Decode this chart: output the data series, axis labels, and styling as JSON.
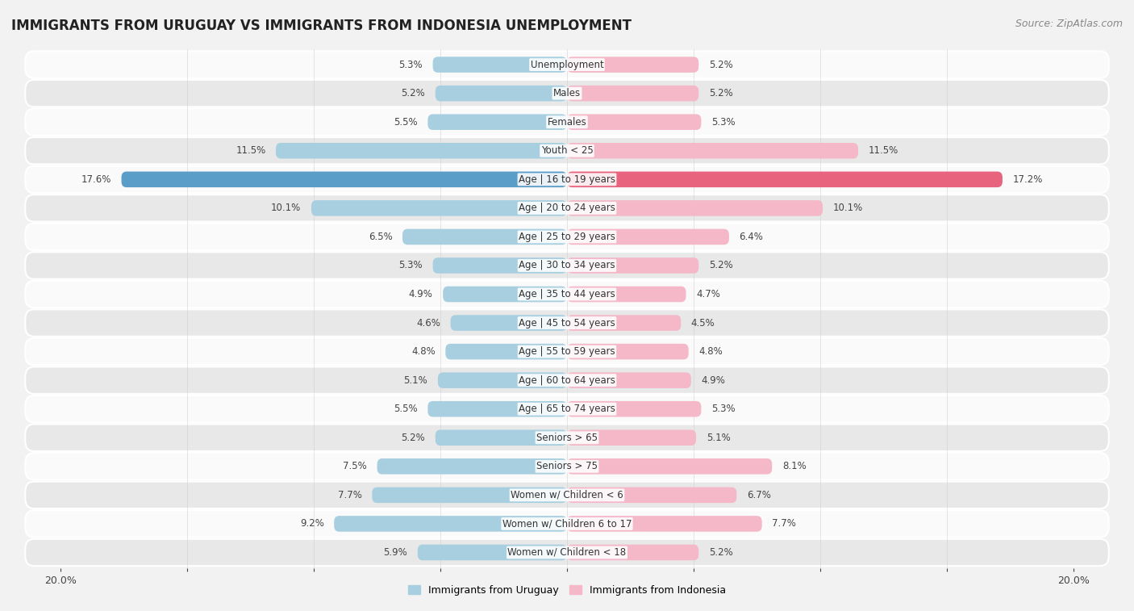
{
  "title": "IMMIGRANTS FROM URUGUAY VS IMMIGRANTS FROM INDONESIA UNEMPLOYMENT",
  "source": "Source: ZipAtlas.com",
  "categories": [
    "Unemployment",
    "Males",
    "Females",
    "Youth < 25",
    "Age | 16 to 19 years",
    "Age | 20 to 24 years",
    "Age | 25 to 29 years",
    "Age | 30 to 34 years",
    "Age | 35 to 44 years",
    "Age | 45 to 54 years",
    "Age | 55 to 59 years",
    "Age | 60 to 64 years",
    "Age | 65 to 74 years",
    "Seniors > 65",
    "Seniors > 75",
    "Women w/ Children < 6",
    "Women w/ Children 6 to 17",
    "Women w/ Children < 18"
  ],
  "uruguay_values": [
    5.3,
    5.2,
    5.5,
    11.5,
    17.6,
    10.1,
    6.5,
    5.3,
    4.9,
    4.6,
    4.8,
    5.1,
    5.5,
    5.2,
    7.5,
    7.7,
    9.2,
    5.9
  ],
  "indonesia_values": [
    5.2,
    5.2,
    5.3,
    11.5,
    17.2,
    10.1,
    6.4,
    5.2,
    4.7,
    4.5,
    4.8,
    4.9,
    5.3,
    5.1,
    8.1,
    6.7,
    7.7,
    5.2
  ],
  "uruguay_color": "#a8cfe0",
  "indonesia_color": "#f4b8c8",
  "uruguay_highlight_color": "#5b9dc9",
  "indonesia_highlight_color": "#e8637d",
  "axis_max": 20.0,
  "background_color": "#f2f2f2",
  "row_light": "#fafafa",
  "row_dark": "#e8e8e8",
  "legend_uruguay": "Immigrants from Uruguay",
  "legend_indonesia": "Immigrants from Indonesia",
  "title_fontsize": 12,
  "source_fontsize": 9,
  "label_fontsize": 8.5,
  "value_fontsize": 8.5
}
